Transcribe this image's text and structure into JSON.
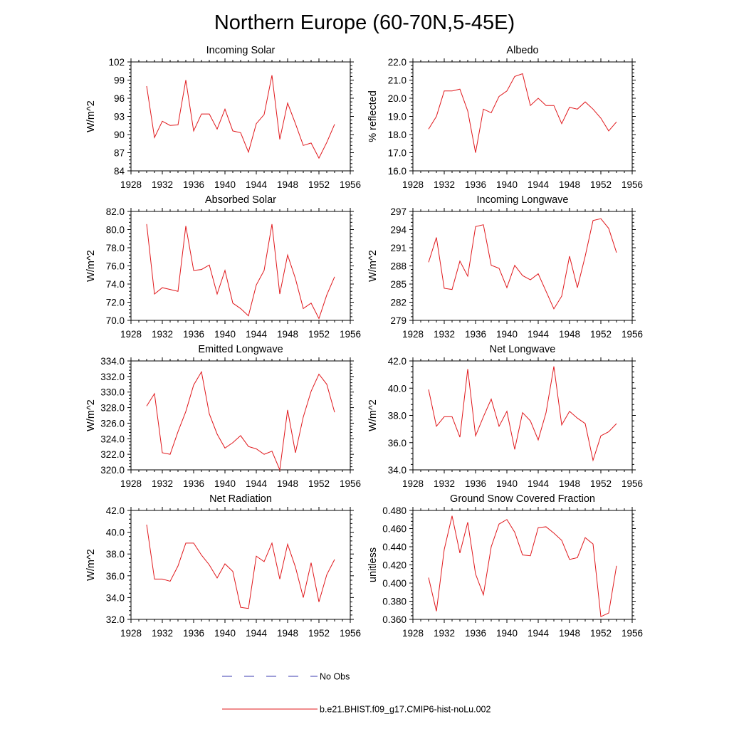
{
  "figure": {
    "title": "Northern Europe (60-70N,5-45E)",
    "legend": [
      {
        "label": "No Obs",
        "color": "#3b3bb0",
        "style": "dashed"
      },
      {
        "label": "b.e21.BHIST.f09_g17.CMIP6-hist-noLu.002",
        "color": "#e0181c",
        "style": "solid"
      }
    ]
  },
  "chart_data": [
    {
      "type": "line",
      "title": "Incoming Solar",
      "ylabel": "W/m^2",
      "xlim": [
        1928,
        1956
      ],
      "xticks": [
        1928,
        1932,
        1936,
        1940,
        1944,
        1948,
        1952,
        1956
      ],
      "ylim": [
        84,
        102
      ],
      "yticks": [
        84,
        87,
        90,
        93,
        96,
        99,
        102
      ],
      "ydec": 0,
      "color": "#e0181c",
      "x_start": 1930,
      "values": [
        98.0,
        89.5,
        92.2,
        91.5,
        91.6,
        99.0,
        90.6,
        93.4,
        93.4,
        90.9,
        94.2,
        90.6,
        90.3,
        87.1,
        91.8,
        93.3,
        99.8,
        89.2,
        95.2,
        91.8,
        88.2,
        88.6,
        86.1,
        88.7,
        91.7
      ]
    },
    {
      "type": "line",
      "title": "Albedo",
      "ylabel": "% reflected",
      "xlim": [
        1928,
        1956
      ],
      "xticks": [
        1928,
        1932,
        1936,
        1940,
        1944,
        1948,
        1952,
        1956
      ],
      "ylim": [
        16,
        22
      ],
      "yticks": [
        16,
        17,
        18,
        19,
        20,
        21,
        22
      ],
      "ydec": 1,
      "color": "#e0181c",
      "x_start": 1930,
      "values": [
        18.3,
        19.0,
        20.4,
        20.4,
        20.5,
        19.3,
        17.0,
        19.4,
        19.2,
        20.1,
        20.4,
        21.2,
        21.35,
        19.6,
        20.0,
        19.6,
        19.6,
        18.6,
        19.5,
        19.4,
        19.8,
        19.4,
        18.9,
        18.2,
        18.7
      ]
    },
    {
      "type": "line",
      "title": "Absorbed Solar",
      "ylabel": "W/m^2",
      "xlim": [
        1928,
        1956
      ],
      "xticks": [
        1928,
        1932,
        1936,
        1940,
        1944,
        1948,
        1952,
        1956
      ],
      "ylim": [
        70,
        82
      ],
      "yticks": [
        70,
        72,
        74,
        76,
        78,
        80,
        82
      ],
      "ydec": 1,
      "color": "#e0181c",
      "x_start": 1930,
      "values": [
        80.6,
        72.9,
        73.6,
        73.4,
        73.2,
        80.4,
        75.5,
        75.6,
        76.1,
        72.9,
        75.5,
        71.9,
        71.3,
        70.5,
        73.9,
        75.5,
        80.6,
        72.9,
        77.2,
        74.6,
        71.3,
        71.9,
        70.2,
        72.8,
        74.8
      ]
    },
    {
      "type": "line",
      "title": "Incoming Longwave",
      "ylabel": "W/m^2",
      "xlim": [
        1928,
        1956
      ],
      "xticks": [
        1928,
        1932,
        1936,
        1940,
        1944,
        1948,
        1952,
        1956
      ],
      "ylim": [
        279,
        297
      ],
      "yticks": [
        279,
        282,
        285,
        288,
        291,
        294,
        297
      ],
      "ydec": 0,
      "color": "#e0181c",
      "x_start": 1930,
      "values": [
        288.6,
        292.7,
        284.3,
        284.1,
        288.8,
        286.3,
        294.5,
        294.8,
        288.1,
        287.6,
        284.4,
        288.1,
        286.4,
        285.7,
        286.7,
        283.8,
        280.9,
        283.0,
        289.6,
        284.4,
        289.6,
        295.5,
        295.8,
        294.2,
        290.2
      ]
    },
    {
      "type": "line",
      "title": "Emitted Longwave",
      "ylabel": "W/m^2",
      "xlim": [
        1928,
        1956
      ],
      "xticks": [
        1928,
        1932,
        1936,
        1940,
        1944,
        1948,
        1952,
        1956
      ],
      "ylim": [
        320,
        334
      ],
      "yticks": [
        320,
        322,
        324,
        326,
        328,
        330,
        332,
        334
      ],
      "ydec": 1,
      "color": "#e0181c",
      "x_start": 1930,
      "values": [
        328.2,
        329.8,
        322.2,
        322.0,
        324.9,
        327.5,
        330.9,
        332.6,
        327.2,
        324.6,
        322.8,
        323.5,
        324.4,
        323.0,
        322.7,
        322.0,
        322.4,
        320.0,
        327.7,
        322.2,
        326.8,
        330.1,
        332.3,
        331.0,
        327.4
      ]
    },
    {
      "type": "line",
      "title": "Net Longwave",
      "ylabel": "W/m^2",
      "xlim": [
        1928,
        1956
      ],
      "xticks": [
        1928,
        1932,
        1936,
        1940,
        1944,
        1948,
        1952,
        1956
      ],
      "ylim": [
        34,
        42
      ],
      "yticks": [
        34,
        36,
        38,
        40,
        42
      ],
      "ydec": 1,
      "color": "#e0181c",
      "x_start": 1930,
      "values": [
        39.9,
        37.2,
        37.9,
        37.9,
        36.4,
        41.4,
        36.5,
        37.9,
        39.2,
        37.2,
        38.3,
        35.5,
        38.2,
        37.6,
        36.2,
        38.2,
        41.6,
        37.3,
        38.3,
        37.8,
        37.4,
        34.7,
        36.5,
        36.8,
        37.4
      ]
    },
    {
      "type": "line",
      "title": "Net Radiation",
      "ylabel": "W/m^2",
      "xlim": [
        1928,
        1956
      ],
      "xticks": [
        1928,
        1932,
        1936,
        1940,
        1944,
        1948,
        1952,
        1956
      ],
      "ylim": [
        32,
        42
      ],
      "yticks": [
        32,
        34,
        36,
        38,
        40,
        42
      ],
      "ydec": 1,
      "color": "#e0181c",
      "x_start": 1930,
      "values": [
        40.7,
        35.7,
        35.7,
        35.5,
        36.9,
        39.0,
        39.0,
        37.9,
        37.0,
        35.8,
        37.1,
        36.4,
        33.1,
        33.0,
        37.8,
        37.3,
        39.0,
        35.7,
        38.9,
        36.8,
        34.0,
        37.2,
        33.6,
        36.1,
        37.5
      ]
    },
    {
      "type": "line",
      "title": "Ground Snow Covered Fraction",
      "ylabel": "unitless",
      "xlim": [
        1928,
        1956
      ],
      "xticks": [
        1928,
        1932,
        1936,
        1940,
        1944,
        1948,
        1952,
        1956
      ],
      "ylim": [
        0.36,
        0.48
      ],
      "yticks": [
        0.36,
        0.38,
        0.4,
        0.42,
        0.44,
        0.46,
        0.48
      ],
      "ydec": 3,
      "color": "#e0181c",
      "x_start": 1930,
      "values": [
        0.406,
        0.369,
        0.437,
        0.474,
        0.433,
        0.467,
        0.41,
        0.387,
        0.44,
        0.465,
        0.47,
        0.456,
        0.431,
        0.43,
        0.461,
        0.462,
        0.455,
        0.447,
        0.426,
        0.428,
        0.45,
        0.443,
        0.363,
        0.367,
        0.419
      ]
    }
  ]
}
